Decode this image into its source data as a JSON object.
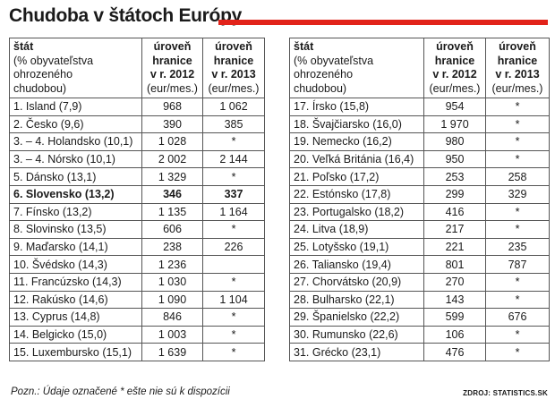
{
  "title": "Chudoba v štátoch Európy",
  "accent_color": "#e2231a",
  "headers": {
    "state_bold": "štát",
    "state_lines": [
      "(% obyvateľstva",
      "ohrozeného",
      "chudobou)"
    ],
    "y2012_bold": [
      "úroveň",
      "hranice",
      "v r. 2012"
    ],
    "y2012_unit": "(eur/mes.)",
    "y2013_bold": [
      "úroveň",
      "hranice",
      "v r. 2013"
    ],
    "y2013_unit": "(eur/mes.)"
  },
  "left_rows": [
    {
      "state": "1. Island (7,9)",
      "v2012": "968",
      "v2013": "1 062"
    },
    {
      "state": "2. Česko (9,6)",
      "v2012": "390",
      "v2013": "385"
    },
    {
      "state": "3. – 4. Holandsko (10,1)",
      "v2012": "1 028",
      "v2013": "*"
    },
    {
      "state": "3. – 4. Nórsko (10,1)",
      "v2012": "2 002",
      "v2013": "2 144"
    },
    {
      "state": "5. Dánsko (13,1)",
      "v2012": "1 329",
      "v2013": "*"
    },
    {
      "state": "6. Slovensko (13,2)",
      "v2012": "346",
      "v2013": "337",
      "bold": true
    },
    {
      "state": "7. Fínsko (13,2)",
      "v2012": "1 135",
      "v2013": "1 164"
    },
    {
      "state": "8. Slovinsko (13,5)",
      "v2012": "606",
      "v2013": "*"
    },
    {
      "state": "9. Maďarsko (14,1)",
      "v2012": "238",
      "v2013": "226"
    },
    {
      "state": "10. Švédsko (14,3)",
      "v2012": "1 236",
      "v2013": ""
    },
    {
      "state": "11. Francúzsko (14,3)",
      "v2012": "1 030",
      "v2013": "*"
    },
    {
      "state": "12. Rakúsko (14,6)",
      "v2012": "1 090",
      "v2013": "1 104"
    },
    {
      "state": "13. Cyprus (14,8)",
      "v2012": "846",
      "v2013": "*"
    },
    {
      "state": "14. Belgicko (15,0)",
      "v2012": "1 003",
      "v2013": "*"
    },
    {
      "state": "15. Luxembursko (15,1)",
      "v2012": "1 639",
      "v2013": "*"
    }
  ],
  "right_rows": [
    {
      "state": "17. Írsko (15,8)",
      "v2012": "954",
      "v2013": "*"
    },
    {
      "state": "18. Švajčiarsko (16,0)",
      "v2012": "1 970",
      "v2013": "*"
    },
    {
      "state": "19. Nemecko (16,2)",
      "v2012": "980",
      "v2013": "*"
    },
    {
      "state": "20. Veľká Británia (16,4)",
      "v2012": "950",
      "v2013": "*"
    },
    {
      "state": "21. Poľsko (17,2)",
      "v2012": "253",
      "v2013": "258"
    },
    {
      "state": "22. Estónsko (17,8)",
      "v2012": "299",
      "v2013": "329"
    },
    {
      "state": "23. Portugalsko (18,2)",
      "v2012": "416",
      "v2013": "*"
    },
    {
      "state": "24. Litva (18,9)",
      "v2012": "217",
      "v2013": "*"
    },
    {
      "state": "25. Lotyšsko (19,1)",
      "v2012": "221",
      "v2013": "235"
    },
    {
      "state": "26. Taliansko (19,4)",
      "v2012": "801",
      "v2013": "787"
    },
    {
      "state": "27. Chorvátsko (20,9)",
      "v2012": "270",
      "v2013": "*"
    },
    {
      "state": "28. Bulharsko (22,1)",
      "v2012": "143",
      "v2013": "*"
    },
    {
      "state": "29. Španielsko (22,2)",
      "v2012": "599",
      "v2013": "676"
    },
    {
      "state": "30. Rumunsko (22,6)",
      "v2012": "106",
      "v2013": "*"
    },
    {
      "state": "31. Grécko (23,1)",
      "v2012": "476",
      "v2013": "*"
    }
  ],
  "note": "Pozn.: Údaje označené * ešte nie sú k dispozícii",
  "source": "ZDROJ: STATISTICS.SK"
}
